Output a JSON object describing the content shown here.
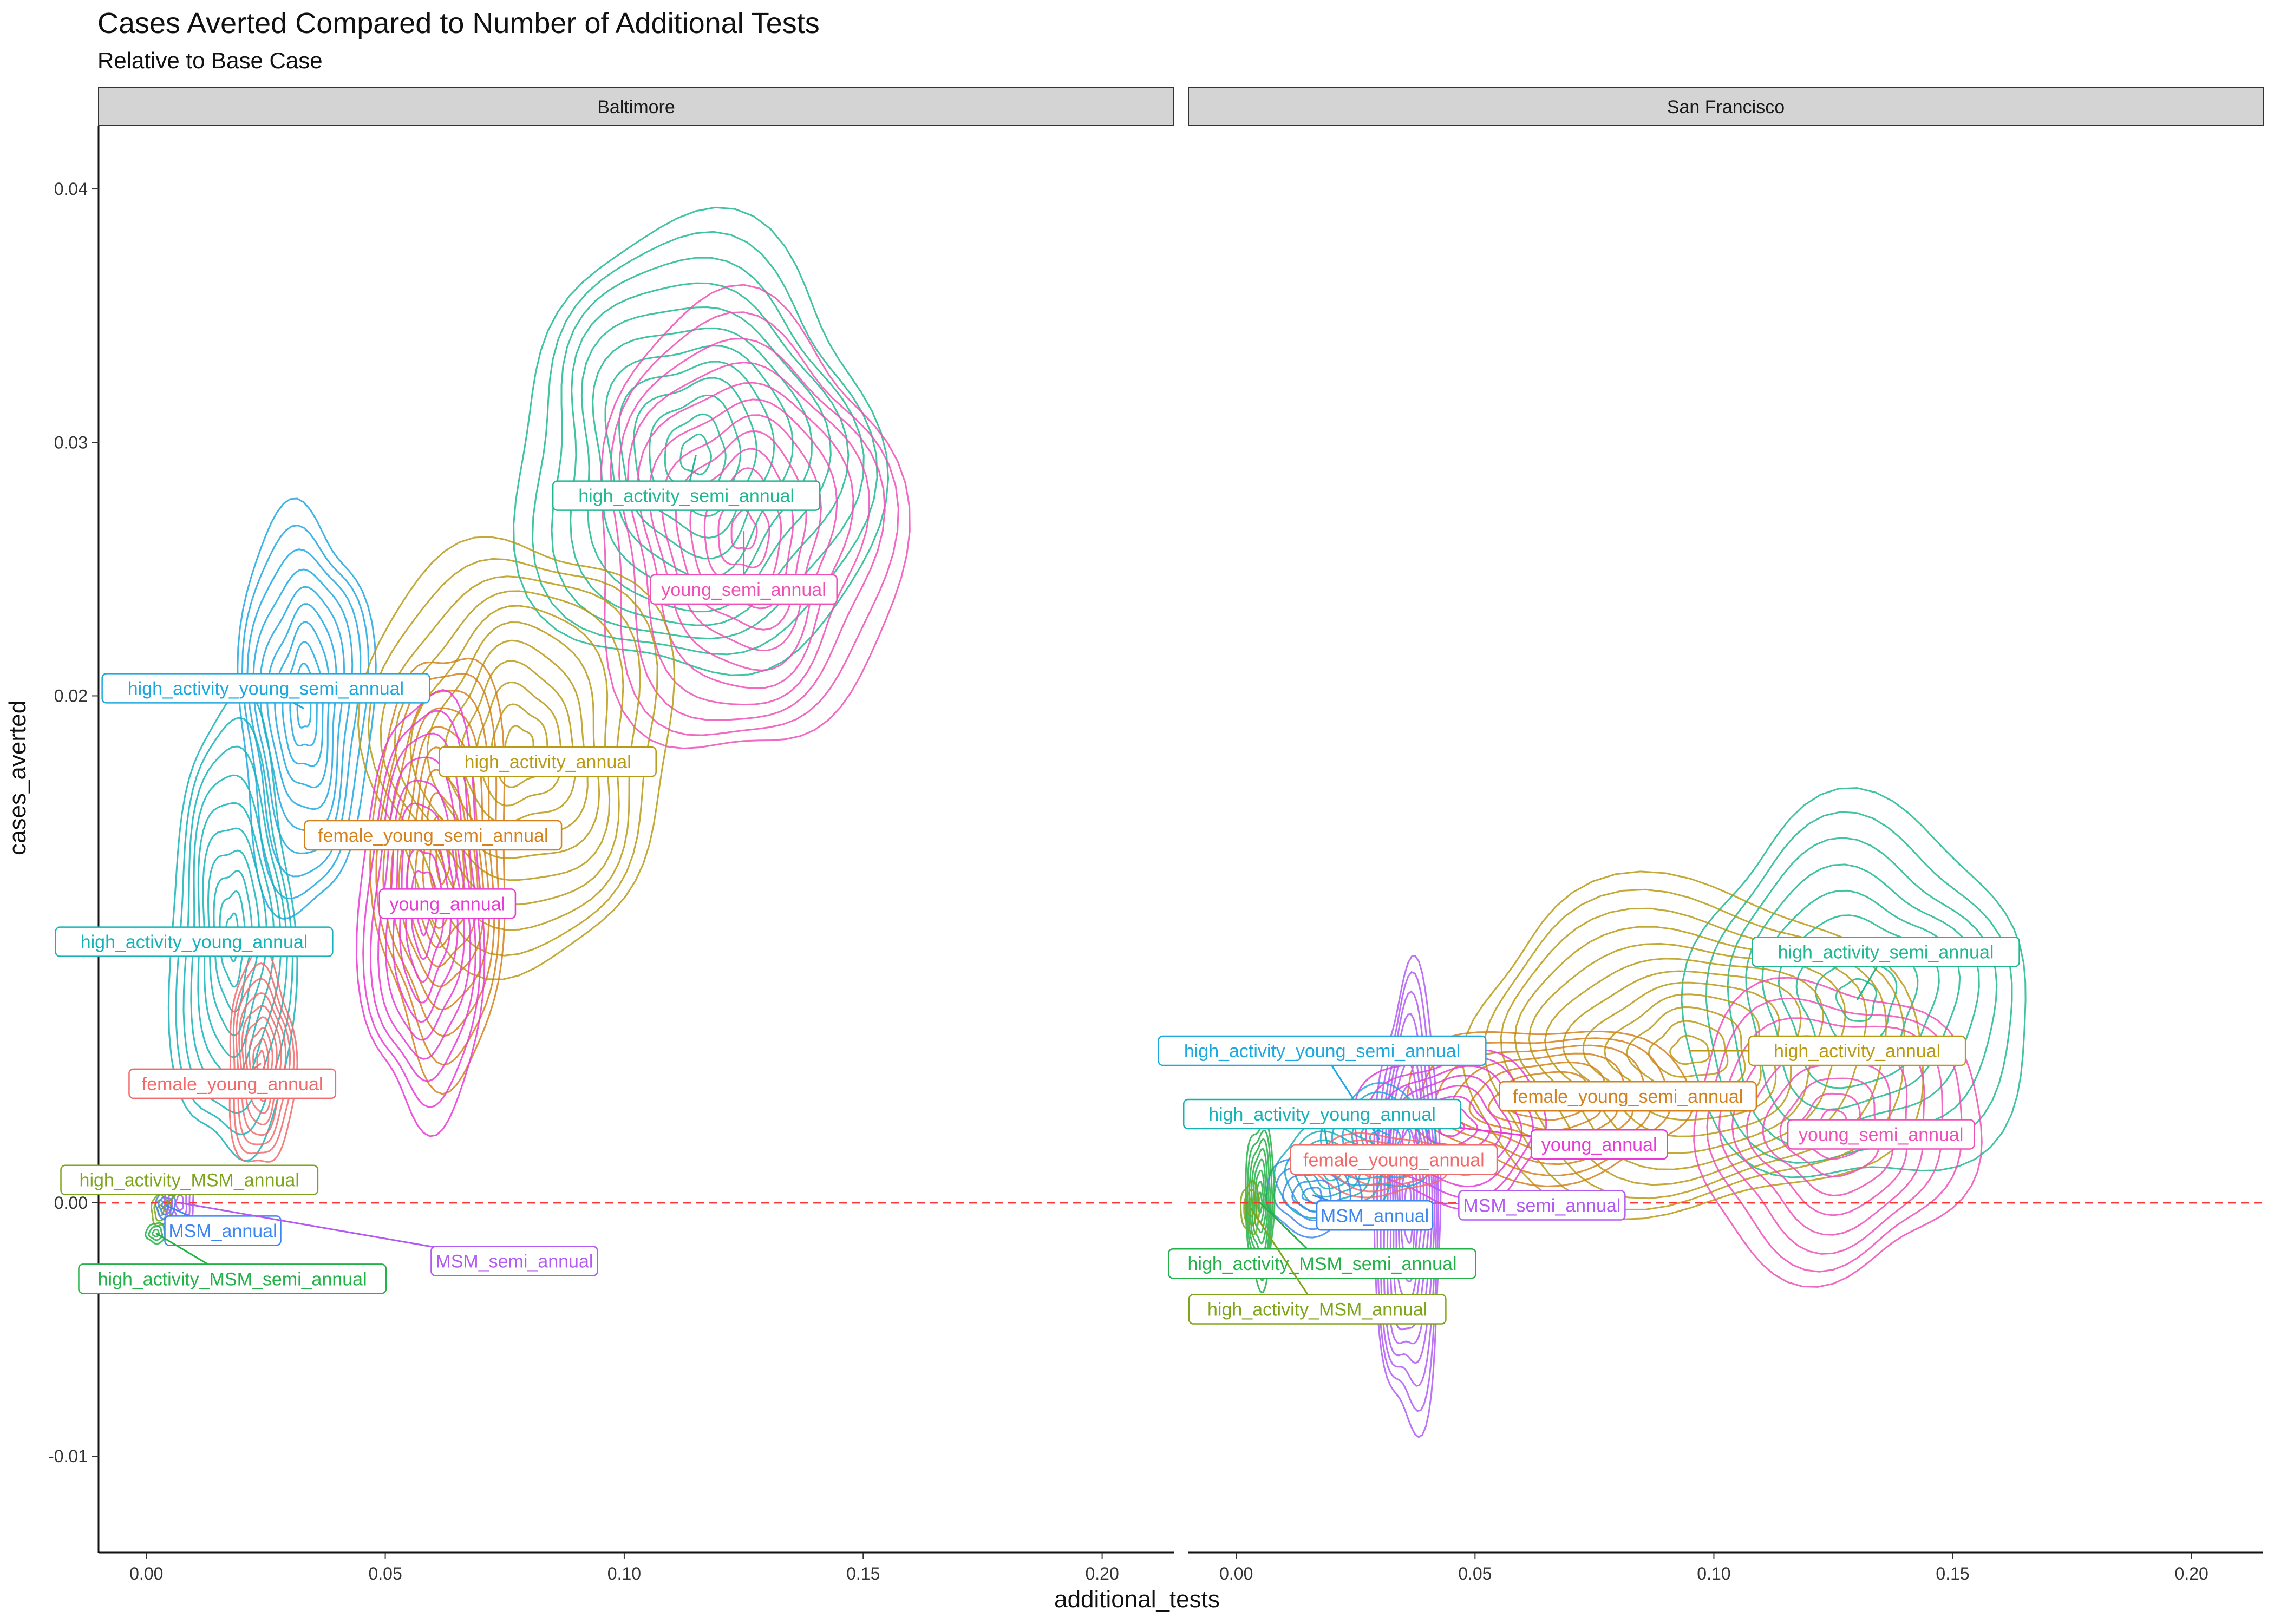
{
  "chart_data": {
    "type": "contour",
    "title": "Cases Averted Compared to Number of Additional Tests",
    "subtitle": "Relative to Base Case",
    "xlabel": "additional_tests",
    "ylabel": "cases_averted",
    "xlim": [
      -0.01,
      0.215
    ],
    "ylim": [
      -0.0138,
      0.0425
    ],
    "xticks": [
      "0.00",
      "0.05",
      "0.10",
      "0.15",
      "0.20"
    ],
    "xtick_values": [
      0,
      0.05,
      0.1,
      0.15,
      0.2
    ],
    "yticks": [
      "-0.01",
      "0.00",
      "0.01",
      "0.02",
      "0.03",
      "0.04"
    ],
    "ytick_values": [
      -0.01,
      0,
      0.01,
      0.02,
      0.03,
      0.04
    ],
    "reference_line": {
      "y": 0,
      "color": "#ff3333",
      "style": "dashed"
    },
    "grid": false,
    "legend": "none",
    "facets": [
      {
        "name": "Baltimore",
        "series": [
          {
            "name": "high_activity_semi_annual",
            "color": "#1fb890",
            "center": [
              0.115,
              0.0295
            ],
            "spread": [
              0.038,
              0.009
            ],
            "levels": 12,
            "label": "high_activity_semi_annual",
            "label_pos": [
              0.113,
              0.0279
            ]
          },
          {
            "name": "young_semi_annual",
            "color": "#f04fb7",
            "center": [
              0.125,
              0.0265
            ],
            "spread": [
              0.032,
              0.009
            ],
            "levels": 12,
            "label": "young_semi_annual",
            "label_pos": [
              0.125,
              0.0242
            ]
          },
          {
            "name": "high_activity_young_semi_annual",
            "color": "#1ea8e0",
            "center": [
              0.033,
              0.0195
            ],
            "spread": [
              0.014,
              0.008
            ],
            "levels": 10,
            "label": "high_activity_young_semi_annual",
            "label_pos": [
              0.025,
              0.0203
            ]
          },
          {
            "name": "high_activity_annual",
            "color": "#b99a15",
            "center": [
              0.078,
              0.018
            ],
            "spread": [
              0.032,
              0.0085
            ],
            "levels": 11,
            "label": "high_activity_annual",
            "label_pos": [
              0.084,
              0.0174
            ]
          },
          {
            "name": "female_young_semi_annual",
            "color": "#d5801b",
            "center": [
              0.062,
              0.0135
            ],
            "spread": [
              0.014,
              0.0085
            ],
            "levels": 10,
            "label": "female_young_semi_annual",
            "label_pos": [
              0.06,
              0.0145
            ]
          },
          {
            "name": "young_annual",
            "color": "#e73ad6",
            "center": [
              0.058,
              0.0115
            ],
            "spread": [
              0.013,
              0.0085
            ],
            "levels": 10,
            "label": "young_annual",
            "label_pos": [
              0.063,
              0.0118
            ]
          },
          {
            "name": "high_activity_young_annual",
            "color": "#15b3b8",
            "center": [
              0.018,
              0.0105
            ],
            "spread": [
              0.013,
              0.009
            ],
            "levels": 10,
            "label": "high_activity_young_annual",
            "label_pos": [
              0.01,
              0.0103
            ]
          },
          {
            "name": "female_young_annual",
            "color": "#f26b6b",
            "center": [
              0.024,
              0.0055
            ],
            "spread": [
              0.007,
              0.0042
            ],
            "levels": 9,
            "label": "female_young_annual",
            "label_pos": [
              0.018,
              0.0047
            ]
          },
          {
            "name": "high_activity_MSM_annual",
            "color": "#7ea51a",
            "center": [
              0.003,
              -0.0003
            ],
            "spread": [
              0.002,
              0.0006
            ],
            "levels": 3,
            "label": "high_activity_MSM_annual",
            "label_pos": [
              0.009,
              0.0009
            ]
          },
          {
            "name": "MSM_annual",
            "color": "#3d86f0",
            "center": [
              0.004,
              -0.0001
            ],
            "spread": [
              0.002,
              0.0005
            ],
            "levels": 3,
            "label": "MSM_annual",
            "label_pos": [
              0.016,
              -0.0011
            ]
          },
          {
            "name": "MSM_semi_annual",
            "color": "#b25af3",
            "center": [
              0.007,
              0.0
            ],
            "spread": [
              0.003,
              0.0012
            ],
            "levels": 4,
            "label": "MSM_semi_annual",
            "label_pos": [
              0.077,
              -0.0023
            ]
          },
          {
            "name": "high_activity_MSM_semi_annual",
            "color": "#23b247",
            "center": [
              0.002,
              -0.0012
            ],
            "spread": [
              0.002,
              0.0004
            ],
            "levels": 3,
            "label": "high_activity_MSM_semi_annual",
            "label_pos": [
              0.018,
              -0.003
            ]
          }
        ]
      },
      {
        "name": "San Francisco",
        "series": [
          {
            "name": "high_activity_semi_annual",
            "color": "#1fb890",
            "center": [
              0.13,
              0.008
            ],
            "spread": [
              0.036,
              0.0075
            ],
            "levels": 9,
            "label": "high_activity_semi_annual",
            "label_pos": [
              0.136,
              0.0099
            ]
          },
          {
            "name": "high_activity_annual",
            "color": "#b99a15",
            "center": [
              0.095,
              0.006
            ],
            "spread": [
              0.048,
              0.0065
            ],
            "levels": 12,
            "label": "high_activity_annual",
            "label_pos": [
              0.13,
              0.006
            ]
          },
          {
            "name": "young_semi_annual",
            "color": "#f04fb7",
            "center": [
              0.125,
              0.003
            ],
            "spread": [
              0.03,
              0.0058
            ],
            "levels": 9,
            "label": "young_semi_annual",
            "label_pos": [
              0.135,
              0.0027
            ]
          },
          {
            "name": "female_young_semi_annual",
            "color": "#d5801b",
            "center": [
              0.065,
              0.004
            ],
            "spread": [
              0.03,
              0.003
            ],
            "levels": 8,
            "label": "female_young_semi_annual",
            "label_pos": [
              0.082,
              0.0042
            ]
          },
          {
            "name": "young_annual",
            "color": "#e73ad6",
            "center": [
              0.045,
              0.003
            ],
            "spread": [
              0.02,
              0.003
            ],
            "levels": 8,
            "label": "young_annual",
            "label_pos": [
              0.076,
              0.0023
            ]
          },
          {
            "name": "MSM_semi_annual",
            "color": "#b25af3",
            "center": [
              0.036,
              0.0
            ],
            "spread": [
              0.007,
              0.009
            ],
            "levels": 12,
            "label": "MSM_semi_annual",
            "label_pos": [
              0.064,
              -0.0001
            ]
          },
          {
            "name": "high_activity_young_semi_annual",
            "color": "#1ea8e0",
            "center": [
              0.03,
              0.0025
            ],
            "spread": [
              0.012,
              0.002
            ],
            "levels": 6,
            "label": "high_activity_young_semi_annual",
            "label_pos": [
              0.018,
              0.006
            ]
          },
          {
            "name": "high_activity_young_annual",
            "color": "#15b3b8",
            "center": [
              0.02,
              0.0012
            ],
            "spread": [
              0.012,
              0.0018
            ],
            "levels": 6,
            "label": "high_activity_young_annual",
            "label_pos": [
              0.018,
              0.0035
            ]
          },
          {
            "name": "female_young_annual",
            "color": "#f26b6b",
            "center": [
              0.03,
              0.0015
            ],
            "spread": [
              0.014,
              0.0012
            ],
            "levels": 5,
            "label": "female_young_annual",
            "label_pos": [
              0.033,
              0.0017
            ]
          },
          {
            "name": "MSM_annual",
            "color": "#3d86f0",
            "center": [
              0.016,
              0.0003
            ],
            "spread": [
              0.01,
              0.0015
            ],
            "levels": 5,
            "label": "MSM_annual",
            "label_pos": [
              0.029,
              -0.0005
            ]
          },
          {
            "name": "high_activity_MSM_semi_annual",
            "color": "#23b247",
            "center": [
              0.005,
              0.0
            ],
            "spread": [
              0.003,
              0.0032
            ],
            "levels": 8,
            "label": "high_activity_MSM_semi_annual",
            "label_pos": [
              0.018,
              -0.0024
            ]
          },
          {
            "name": "high_activity_MSM_annual",
            "color": "#7ea51a",
            "center": [
              0.003,
              -0.0002
            ],
            "spread": [
              0.002,
              0.001
            ],
            "levels": 3,
            "label": "high_activity_MSM_annual",
            "label_pos": [
              0.017,
              -0.0042
            ]
          }
        ]
      }
    ]
  }
}
